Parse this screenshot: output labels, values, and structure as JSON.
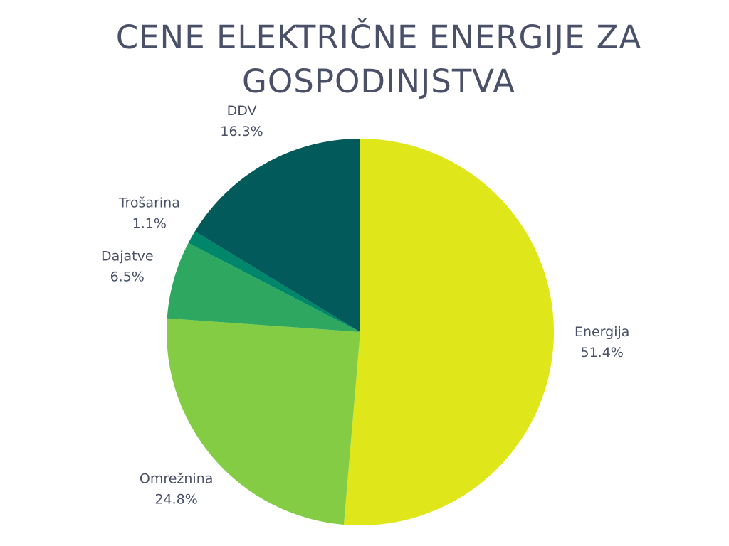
{
  "chart_data": {
    "type": "pie",
    "title": "CENE ELEKTRIČNE ENERGIJE ZA GOSPODINJSTVA",
    "categories": [
      "Energija",
      "Omrežnina",
      "Dajatve",
      "Trošarina",
      "DDV"
    ],
    "values": [
      51.4,
      24.8,
      6.5,
      1.1,
      16.3
    ],
    "value_labels": [
      "51.4%",
      "24.8%",
      "6.5%",
      "1.1%",
      "16.3%"
    ],
    "colors": [
      "#dfe61a",
      "#84cc44",
      "#2ea860",
      "#00866a",
      "#035a5a"
    ]
  }
}
